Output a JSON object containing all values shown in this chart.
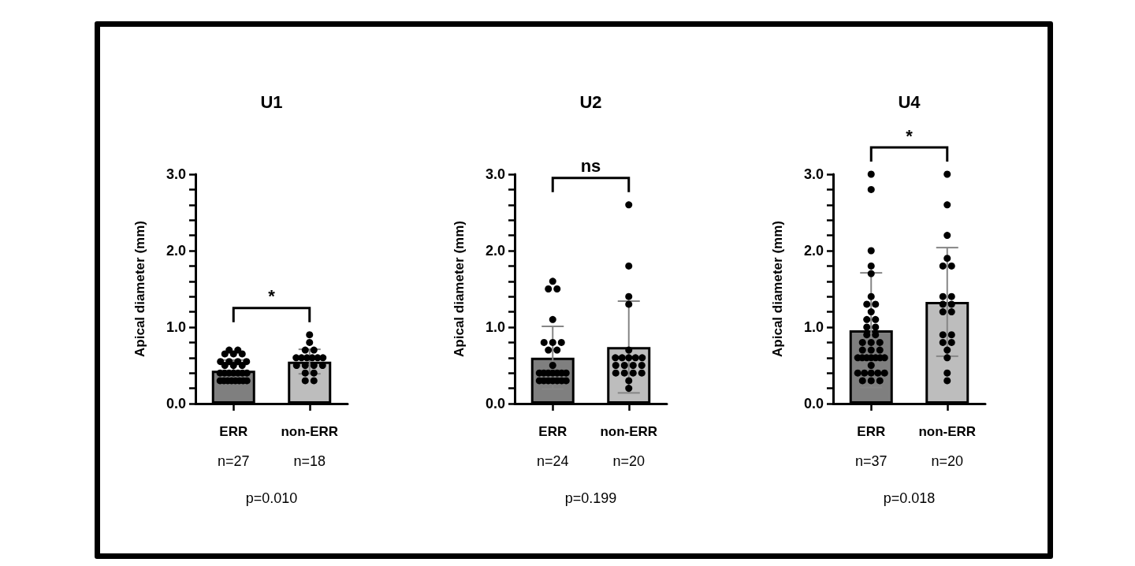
{
  "chart_data": [
    {
      "type": "bar",
      "title": "U1",
      "ylabel": "Apical diameter (mm)",
      "categories": [
        "ERR",
        "non-ERR"
      ],
      "series": [
        {
          "type": "bar",
          "colors": [
            "#7f7f7f",
            "#bdbdbd"
          ],
          "values": [
            0.43,
            0.55
          ],
          "errors": [
            0.14,
            0.16
          ]
        },
        {
          "type": "scatter",
          "color": "#000000",
          "x": [
            "ERR",
            "ERR",
            "ERR",
            "ERR",
            "ERR",
            "ERR",
            "ERR",
            "ERR",
            "ERR",
            "ERR",
            "ERR",
            "ERR",
            "ERR",
            "ERR",
            "ERR",
            "ERR",
            "ERR",
            "ERR",
            "ERR",
            "ERR",
            "ERR",
            "ERR",
            "ERR",
            "ERR",
            "ERR",
            "ERR",
            "ERR",
            "non-ERR",
            "non-ERR",
            "non-ERR",
            "non-ERR",
            "non-ERR",
            "non-ERR",
            "non-ERR",
            "non-ERR",
            "non-ERR",
            "non-ERR",
            "non-ERR",
            "non-ERR",
            "non-ERR",
            "non-ERR",
            "non-ERR",
            "non-ERR",
            "non-ERR",
            "non-ERR"
          ],
          "values": [
            0.7,
            0.7,
            0.65,
            0.65,
            0.65,
            0.55,
            0.55,
            0.55,
            0.55,
            0.5,
            0.5,
            0.5,
            0.4,
            0.4,
            0.4,
            0.4,
            0.4,
            0.4,
            0.4,
            0.3,
            0.3,
            0.3,
            0.3,
            0.3,
            0.3,
            0.3,
            0.3,
            0.9,
            0.8,
            0.7,
            0.7,
            0.6,
            0.6,
            0.6,
            0.6,
            0.6,
            0.6,
            0.5,
            0.5,
            0.5,
            0.5,
            0.4,
            0.4,
            0.3,
            0.3
          ]
        }
      ],
      "marker": "circle",
      "ylim": [
        0,
        3
      ],
      "yticks": [
        {
          "value": 0,
          "label": "0.0"
        },
        {
          "value": 0.2,
          "label": null
        },
        {
          "value": 0.4,
          "label": null
        },
        {
          "value": 0.6,
          "label": null
        },
        {
          "value": 0.8,
          "label": null
        },
        {
          "value": 1,
          "label": "1.0"
        },
        {
          "value": 1.2,
          "label": null
        },
        {
          "value": 1.4,
          "label": null
        },
        {
          "value": 1.6,
          "label": null
        },
        {
          "value": 1.8,
          "label": null
        },
        {
          "value": 2,
          "label": "2.0"
        },
        {
          "value": 2.2,
          "label": null
        },
        {
          "value": 2.4,
          "label": null
        },
        {
          "value": 2.6,
          "label": null
        },
        {
          "value": 2.8,
          "label": null
        },
        {
          "value": 3,
          "label": "3.0"
        }
      ],
      "annotations": [
        "*",
        "n=27",
        "n=18",
        "p=0.010"
      ]
    },
    {
      "type": "bar",
      "title": "U2",
      "ylabel": "Apical diameter (mm)",
      "categories": [
        "ERR",
        "non-ERR"
      ],
      "series": [
        {
          "type": "bar",
          "colors": [
            "#7f7f7f",
            "#bdbdbd"
          ],
          "values": [
            0.6,
            0.74
          ],
          "errors": [
            0.41,
            0.6
          ]
        },
        {
          "type": "scatter",
          "color": "#000000",
          "x": [
            "ERR",
            "ERR",
            "ERR",
            "ERR",
            "ERR",
            "ERR",
            "ERR",
            "ERR",
            "ERR",
            "ERR",
            "ERR",
            "ERR",
            "ERR",
            "ERR",
            "ERR",
            "ERR",
            "ERR",
            "ERR",
            "ERR",
            "ERR",
            "ERR",
            "ERR",
            "ERR",
            "ERR",
            "non-ERR",
            "non-ERR",
            "non-ERR",
            "non-ERR",
            "non-ERR",
            "non-ERR",
            "non-ERR",
            "non-ERR",
            "non-ERR",
            "non-ERR",
            "non-ERR",
            "non-ERR",
            "non-ERR",
            "non-ERR",
            "non-ERR",
            "non-ERR",
            "non-ERR",
            "non-ERR",
            "non-ERR",
            "non-ERR"
          ],
          "values": [
            1.6,
            1.5,
            1.5,
            1.1,
            0.8,
            0.8,
            0.8,
            0.7,
            0.7,
            0.5,
            0.4,
            0.4,
            0.4,
            0.4,
            0.4,
            0.4,
            0.4,
            0.3,
            0.3,
            0.3,
            0.3,
            0.3,
            0.3,
            0.3,
            2.6,
            1.8,
            1.4,
            1.3,
            0.7,
            0.6,
            0.6,
            0.6,
            0.6,
            0.6,
            0.5,
            0.5,
            0.5,
            0.5,
            0.4,
            0.4,
            0.4,
            0.4,
            0.3,
            0.2
          ]
        }
      ],
      "marker": "circle",
      "ylim": [
        0,
        3
      ],
      "yticks": [
        {
          "value": 0,
          "label": "0.0"
        },
        {
          "value": 0.2,
          "label": null
        },
        {
          "value": 0.4,
          "label": null
        },
        {
          "value": 0.6,
          "label": null
        },
        {
          "value": 0.8,
          "label": null
        },
        {
          "value": 1,
          "label": "1.0"
        },
        {
          "value": 1.2,
          "label": null
        },
        {
          "value": 1.4,
          "label": null
        },
        {
          "value": 1.6,
          "label": null
        },
        {
          "value": 1.8,
          "label": null
        },
        {
          "value": 2,
          "label": "2.0"
        },
        {
          "value": 2.2,
          "label": null
        },
        {
          "value": 2.4,
          "label": null
        },
        {
          "value": 2.6,
          "label": null
        },
        {
          "value": 2.8,
          "label": null
        },
        {
          "value": 3,
          "label": "3.0"
        }
      ],
      "annotations": [
        "ns",
        "n=24",
        "n=20",
        "p=0.199"
      ]
    },
    {
      "type": "bar",
      "title": "U4",
      "ylabel": "Apical diameter (mm)",
      "categories": [
        "ERR",
        "non-ERR"
      ],
      "series": [
        {
          "type": "bar",
          "colors": [
            "#7f7f7f",
            "#bdbdbd"
          ],
          "values": [
            0.96,
            1.33
          ],
          "errors": [
            0.75,
            0.71
          ]
        },
        {
          "type": "scatter",
          "color": "#000000",
          "x": [
            "ERR",
            "ERR",
            "ERR",
            "ERR",
            "ERR",
            "ERR",
            "ERR",
            "ERR",
            "ERR",
            "ERR",
            "ERR",
            "ERR",
            "ERR",
            "ERR",
            "ERR",
            "ERR",
            "ERR",
            "ERR",
            "ERR",
            "ERR",
            "ERR",
            "ERR",
            "ERR",
            "ERR",
            "ERR",
            "ERR",
            "ERR",
            "ERR",
            "ERR",
            "ERR",
            "ERR",
            "ERR",
            "ERR",
            "ERR",
            "ERR",
            "ERR",
            "ERR",
            "non-ERR",
            "non-ERR",
            "non-ERR",
            "non-ERR",
            "non-ERR",
            "non-ERR",
            "non-ERR",
            "non-ERR",
            "non-ERR",
            "non-ERR",
            "non-ERR",
            "non-ERR",
            "non-ERR",
            "non-ERR",
            "non-ERR",
            "non-ERR",
            "non-ERR",
            "non-ERR",
            "non-ERR",
            "non-ERR"
          ],
          "values": [
            3,
            2.8,
            2,
            1.8,
            1.7,
            1.4,
            1.3,
            1.3,
            1.2,
            1.1,
            1.1,
            1,
            1,
            0.9,
            0.9,
            0.8,
            0.8,
            0.8,
            0.7,
            0.7,
            0.7,
            0.6,
            0.6,
            0.6,
            0.6,
            0.6,
            0.6,
            0.6,
            0.5,
            0.4,
            0.4,
            0.4,
            0.4,
            0.4,
            0.3,
            0.3,
            0.3,
            3,
            2.6,
            2.2,
            1.9,
            1.8,
            1.8,
            1.4,
            1.4,
            1.3,
            1.3,
            1.2,
            1.2,
            0.9,
            0.9,
            0.8,
            0.8,
            0.7,
            0.6,
            0.4,
            0.3
          ]
        }
      ],
      "marker": "circle",
      "ylim": [
        0,
        3
      ],
      "yticks": [
        {
          "value": 0,
          "label": "0.0"
        },
        {
          "value": 0.2,
          "label": null
        },
        {
          "value": 0.4,
          "label": null
        },
        {
          "value": 0.6,
          "label": null
        },
        {
          "value": 0.8,
          "label": null
        },
        {
          "value": 1,
          "label": "1.0"
        },
        {
          "value": 1.2,
          "label": null
        },
        {
          "value": 1.4,
          "label": null
        },
        {
          "value": 1.6,
          "label": null
        },
        {
          "value": 1.8,
          "label": null
        },
        {
          "value": 2,
          "label": "2.0"
        },
        {
          "value": 2.2,
          "label": null
        },
        {
          "value": 2.4,
          "label": null
        },
        {
          "value": 2.6,
          "label": null
        },
        {
          "value": 2.8,
          "label": null
        },
        {
          "value": 3,
          "label": "3.0"
        }
      ],
      "annotations": [
        "*",
        "n=37",
        "n=20",
        "p=0.018"
      ]
    }
  ]
}
